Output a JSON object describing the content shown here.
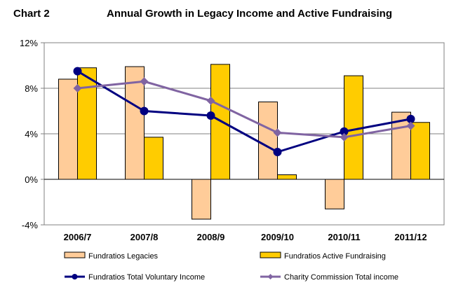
{
  "header": {
    "chart_label": "Chart 2",
    "title": "Annual Growth in Legacy Income and Active Fundraising"
  },
  "chart_data": {
    "type": "bar",
    "title": "Annual Growth in Legacy Income and Active Fundraising",
    "xlabel": "",
    "ylabel": "",
    "categories": [
      "2006/7",
      "2007/8",
      "2008/9",
      "2009/10",
      "2010/11",
      "2011/12"
    ],
    "ylim": [
      -4,
      12
    ],
    "yticks": [
      -4,
      0,
      4,
      8,
      12
    ],
    "ytick_labels": [
      "-4%",
      "0%",
      "4%",
      "8%",
      "12%"
    ],
    "grid": true,
    "legend_position": "bottom",
    "series": [
      {
        "name": "Fundratios Legacies",
        "type": "bar",
        "color": "#FFCC99",
        "values": [
          8.8,
          9.9,
          -3.5,
          6.8,
          -2.6,
          5.9
        ]
      },
      {
        "name": "Fundratios Active Fundraising",
        "type": "bar",
        "color": "#FFCC00",
        "values": [
          9.8,
          3.7,
          10.1,
          0.4,
          9.1,
          5.0
        ]
      },
      {
        "name": "Fundratios Total Voluntary Income",
        "type": "line",
        "color": "#000080",
        "marker": "circle",
        "values": [
          9.5,
          6.0,
          5.6,
          2.4,
          4.2,
          5.3
        ]
      },
      {
        "name": "Charity Commission Total income",
        "type": "line",
        "color": "#8064A2",
        "marker": "diamond",
        "values": [
          8.0,
          8.6,
          6.9,
          4.1,
          3.7,
          4.7
        ]
      }
    ]
  }
}
